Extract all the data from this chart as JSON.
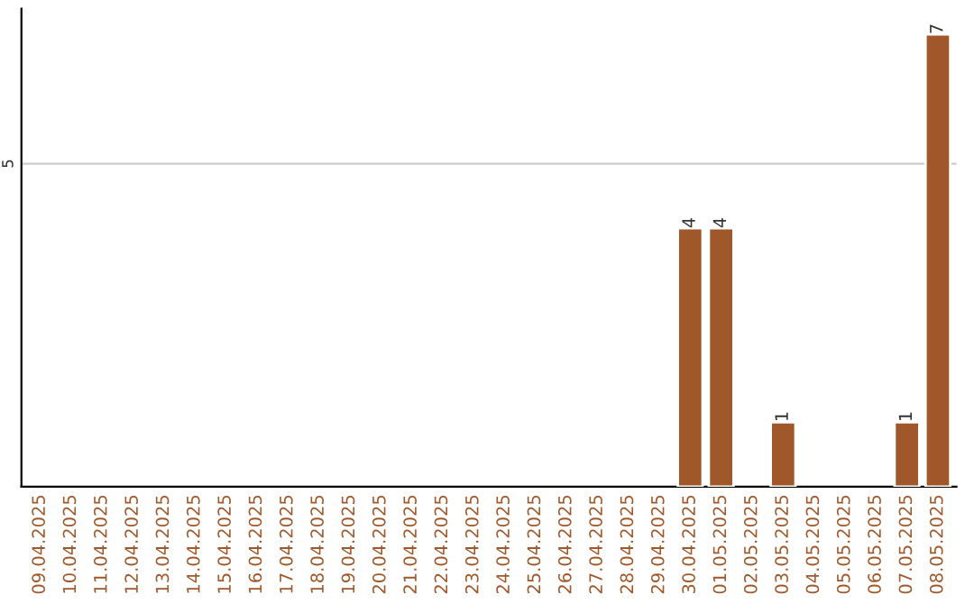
{
  "chart_data": {
    "type": "bar",
    "categories": [
      "09.04.2025",
      "10.04.2025",
      "11.04.2025",
      "12.04.2025",
      "13.04.2025",
      "14.04.2025",
      "15.04.2025",
      "16.04.2025",
      "17.04.2025",
      "18.04.2025",
      "19.04.2025",
      "20.04.2025",
      "21.04.2025",
      "22.04.2025",
      "23.04.2025",
      "24.04.2025",
      "25.04.2025",
      "26.04.2025",
      "27.04.2025",
      "28.04.2025",
      "29.04.2025",
      "30.04.2025",
      "01.05.2025",
      "02.05.2025",
      "03.05.2025",
      "04.05.2025",
      "05.05.2025",
      "06.05.2025",
      "07.05.2025",
      "08.05.2025"
    ],
    "values": [
      null,
      null,
      null,
      null,
      null,
      null,
      null,
      null,
      null,
      null,
      null,
      null,
      null,
      null,
      null,
      null,
      null,
      null,
      null,
      null,
      null,
      4,
      4,
      null,
      1,
      null,
      null,
      null,
      1,
      7
    ],
    "value_labels": [
      null,
      null,
      null,
      null,
      null,
      null,
      null,
      null,
      null,
      null,
      null,
      null,
      null,
      null,
      null,
      null,
      null,
      null,
      null,
      null,
      null,
      "4",
      "4",
      null,
      "1",
      null,
      null,
      null,
      "1",
      "7"
    ],
    "color": "#a0582a",
    "ylim": [
      0,
      7.4
    ],
    "ref_lines": [
      {
        "axis": "y",
        "value": 5,
        "label": "5",
        "color": "#cccccc"
      }
    ]
  }
}
